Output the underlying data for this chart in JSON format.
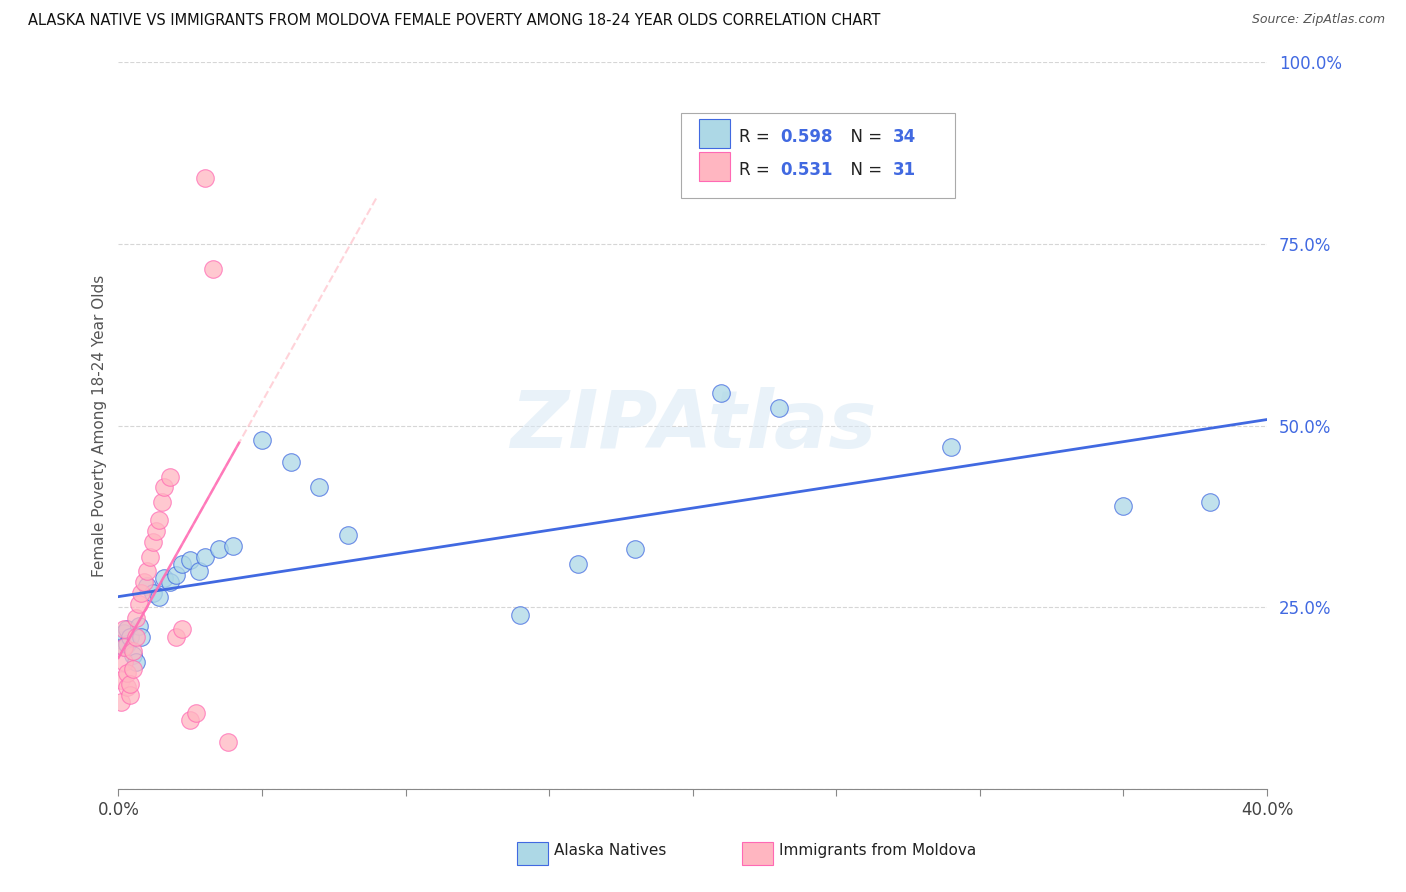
{
  "title": "ALASKA NATIVE VS IMMIGRANTS FROM MOLDOVA FEMALE POVERTY AMONG 18-24 YEAR OLDS CORRELATION CHART",
  "source": "Source: ZipAtlas.com",
  "ylabel": "Female Poverty Among 18-24 Year Olds",
  "legend_blue_r": "R = 0.598",
  "legend_blue_n": "N = 34",
  "legend_pink_r": "R = 0.531",
  "legend_pink_n": "N = 31",
  "legend_label_blue": "Alaska Natives",
  "legend_label_pink": "Immigrants from Moldova",
  "blue_scatter_x": [
    0.001,
    0.002,
    0.002,
    0.003,
    0.003,
    0.004,
    0.005,
    0.006,
    0.007,
    0.008,
    0.01,
    0.012,
    0.014,
    0.016,
    0.018,
    0.02,
    0.022,
    0.025,
    0.028,
    0.03,
    0.035,
    0.04,
    0.05,
    0.06,
    0.07,
    0.08,
    0.14,
    0.16,
    0.18,
    0.21,
    0.23,
    0.29,
    0.35,
    0.38
  ],
  "blue_scatter_y": [
    0.205,
    0.215,
    0.195,
    0.22,
    0.2,
    0.21,
    0.185,
    0.175,
    0.225,
    0.21,
    0.28,
    0.27,
    0.265,
    0.29,
    0.285,
    0.295,
    0.31,
    0.315,
    0.3,
    0.32,
    0.33,
    0.335,
    0.48,
    0.45,
    0.415,
    0.35,
    0.24,
    0.31,
    0.33,
    0.545,
    0.525,
    0.47,
    0.39,
    0.395
  ],
  "pink_scatter_x": [
    0.001,
    0.001,
    0.002,
    0.002,
    0.002,
    0.003,
    0.003,
    0.004,
    0.004,
    0.005,
    0.005,
    0.006,
    0.006,
    0.007,
    0.008,
    0.009,
    0.01,
    0.011,
    0.012,
    0.013,
    0.014,
    0.015,
    0.016,
    0.018,
    0.02,
    0.022,
    0.025,
    0.027,
    0.03,
    0.033,
    0.038
  ],
  "pink_scatter_y": [
    0.12,
    0.15,
    0.175,
    0.195,
    0.22,
    0.14,
    0.16,
    0.13,
    0.145,
    0.165,
    0.19,
    0.21,
    0.235,
    0.255,
    0.27,
    0.285,
    0.3,
    0.32,
    0.34,
    0.355,
    0.37,
    0.395,
    0.415,
    0.43,
    0.21,
    0.22,
    0.095,
    0.105,
    0.84,
    0.715,
    0.065
  ],
  "blue_color": "#ADD8E6",
  "pink_color": "#FFB6C1",
  "blue_line_color": "#4169E1",
  "pink_line_color": "#FF69B4",
  "pink_trendline_color": "#FFB6C1",
  "watermark": "ZIPAtlas",
  "background_color": "#FFFFFF",
  "xmin": 0.0,
  "xmax": 0.4,
  "ymin": 0.0,
  "ymax": 1.0,
  "yticks": [
    0.0,
    0.25,
    0.5,
    0.75,
    1.0
  ],
  "ytick_labels": [
    "",
    "25.0%",
    "50.0%",
    "75.0%",
    "100.0%"
  ],
  "blue_trendline_slope": 0.85,
  "blue_trendline_intercept": 0.18,
  "r_color": "#4169E1",
  "n_color": "#4169E1"
}
